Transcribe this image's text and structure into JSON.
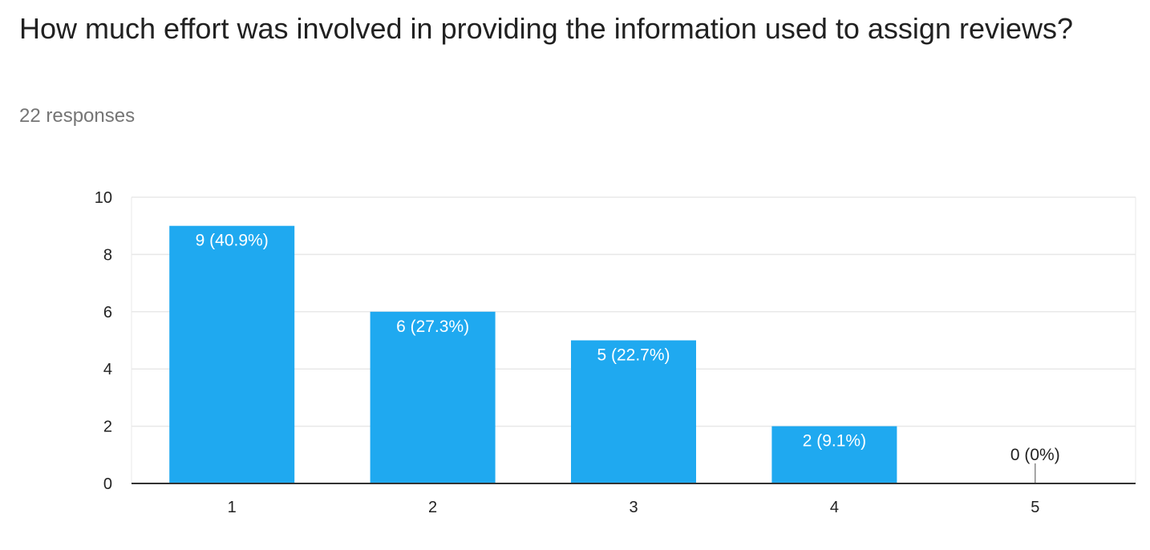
{
  "question": {
    "title": "How much effort was involved in providing the information used to assign reviews?",
    "responses": "22 responses"
  },
  "colors": {
    "bar": "#1fa9f0",
    "grid": "#e8e8e8",
    "axis": "#333333",
    "label_inside": "#ffffff",
    "label_outside": "#222222"
  },
  "chart_data": {
    "type": "bar",
    "categories": [
      "1",
      "2",
      "3",
      "4",
      "5"
    ],
    "values": [
      9,
      6,
      5,
      2,
      0
    ],
    "data_labels": [
      "9 (40.9%)",
      "6 (27.3%)",
      "5 (22.7%)",
      "2 (9.1%)",
      "0 (0%)"
    ],
    "ylim": [
      0,
      10
    ],
    "yticks": [
      0,
      2,
      4,
      6,
      8,
      10
    ],
    "grid": true,
    "legend": "none"
  }
}
